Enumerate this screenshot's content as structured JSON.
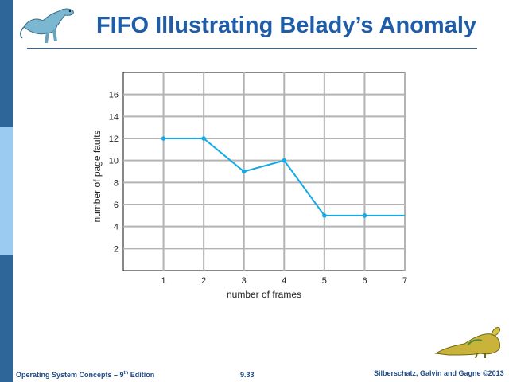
{
  "slide": {
    "title": "FIFO Illustrating Belady’s Anomaly",
    "footer_left": "Operating System Concepts – 9",
    "footer_left_sup": "th",
    "footer_left_suffix": " Edition",
    "page_number": "9.33",
    "footer_right": "Silberschatz, Galvin and Gagne ©2013"
  },
  "colors": {
    "title": "#1f5da8",
    "sidebar_dark": "#2f6699",
    "sidebar_light": "#9ccbf2",
    "series": "#14a9e6",
    "grid": "#b3b3b3"
  },
  "chart_data": {
    "type": "line",
    "xlabel": "number of frames",
    "ylabel": "number of page faults",
    "x": [
      1,
      2,
      3,
      4,
      5,
      6,
      7
    ],
    "y": [
      12,
      12,
      9,
      10,
      5,
      5,
      5
    ],
    "markers": [
      true,
      true,
      true,
      true,
      true,
      true,
      false
    ],
    "xlim": [
      0,
      7
    ],
    "ylim": [
      0,
      18
    ],
    "xticks": [
      1,
      2,
      3,
      4,
      5,
      6,
      7
    ],
    "yticks": [
      2,
      4,
      6,
      8,
      10,
      12,
      14,
      16
    ],
    "grid": true
  }
}
